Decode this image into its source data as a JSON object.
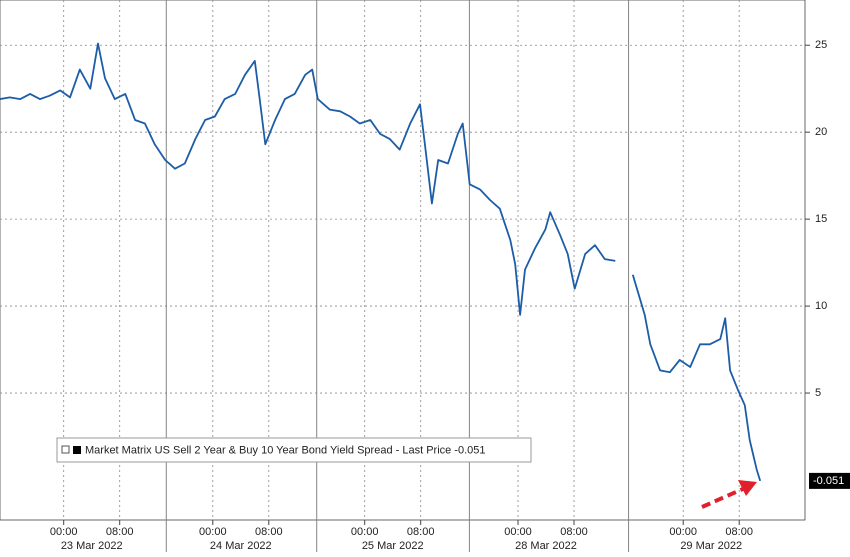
{
  "chart_data": {
    "type": "line",
    "x": [
      0,
      1.4,
      2.9,
      4.3,
      5.7,
      7.1,
      8.6,
      10,
      11.4,
      12.9,
      14,
      15,
      16.4,
      17.9,
      19.3,
      20.7,
      22.1,
      23.6,
      25,
      26.4,
      27.9,
      29.3,
      30.7,
      32.1,
      33.6,
      35,
      36.4,
      37.1,
      37.9,
      39.3,
      40.7,
      42.1,
      43.6,
      44.6,
      45.4,
      47.1,
      48.6,
      50,
      51.4,
      52.9,
      54.3,
      55.7,
      57.1,
      58.6,
      60,
      60.7,
      61.7,
      62.6,
      64,
      65.4,
      66.1,
      67.1,
      68.6,
      70,
      71.4,
      72.9,
      73.6,
      74.3,
      75,
      76.4,
      77.9,
      78.6,
      80,
      81.1,
      82.1,
      83.6,
      85,
      86.4,
      87.9,
      88.6,
      90.4,
      92.1,
      92.9,
      94.3,
      95.7,
      97.1,
      98.6,
      100,
      101.4,
      102.9,
      103.6,
      104.3,
      105.4,
      106.4,
      107.1,
      108.1,
      108.6
    ],
    "series": [
      {
        "name": "Market Matrix US Sell 2 Year & Buy 10 Year Bond Yield Spread - Last Price -0.051",
        "color": "#1d5da8",
        "values": [
          21.9,
          22.0,
          21.9,
          22.2,
          21.9,
          22.1,
          22.4,
          22.0,
          23.6,
          22.5,
          25.1,
          23.1,
          21.9,
          22.2,
          20.7,
          20.5,
          19.3,
          18.4,
          17.9,
          18.2,
          19.6,
          20.7,
          20.9,
          21.9,
          22.2,
          23.3,
          24.1,
          21.9,
          19.3,
          20.7,
          21.9,
          22.2,
          23.3,
          23.6,
          21.9,
          21.3,
          21.2,
          20.9,
          20.5,
          20.7,
          19.9,
          19.6,
          19.0,
          20.5,
          21.6,
          19.3,
          15.9,
          18.4,
          18.2,
          19.9,
          20.5,
          17.0,
          16.7,
          16.1,
          15.6,
          13.8,
          12.4,
          9.5,
          12.1,
          13.3,
          14.4,
          15.4,
          14.1,
          13.0,
          11.0,
          13.0,
          13.5,
          12.7,
          12.6,
          null,
          11.8,
          9.5,
          7.8,
          6.3,
          6.2,
          6.9,
          6.5,
          7.8,
          7.8,
          8.1,
          9.3,
          6.3,
          5.2,
          4.3,
          2.3,
          0.6,
          -0.051
        ]
      }
    ],
    "xlim": [
      0,
      115
    ],
    "ylim": [
      -2.3,
      27.6
    ],
    "yticks": [
      5,
      10,
      15,
      20,
      25
    ],
    "xticks": [
      {
        "value": 9.1,
        "label": "00:00"
      },
      {
        "value": 17.1,
        "label": "08:00"
      },
      {
        "value": 30.4,
        "label": "00:00"
      },
      {
        "value": 38.4,
        "label": "08:00"
      },
      {
        "value": 52.1,
        "label": "00:00"
      },
      {
        "value": 60.1,
        "label": "08:00"
      },
      {
        "value": 74,
        "label": "00:00"
      },
      {
        "value": 82,
        "label": "08:00"
      },
      {
        "value": 97.6,
        "label": "00:00"
      },
      {
        "value": 105.6,
        "label": "08:00"
      }
    ],
    "x_groups": [
      {
        "value": 13.1,
        "label": "23 Mar 2022"
      },
      {
        "value": 34.4,
        "label": "24 Mar 2022"
      },
      {
        "value": 56.1,
        "label": "25 Mar 2022"
      },
      {
        "value": 78,
        "label": "28 Mar 2022"
      },
      {
        "value": 101.6,
        "label": "29 Mar 2022"
      }
    ],
    "grid": true,
    "legend": "lower left"
  }
}
